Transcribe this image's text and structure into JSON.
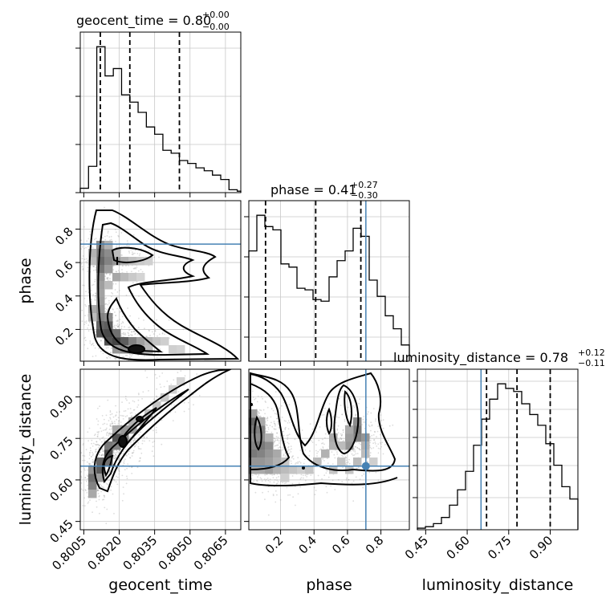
{
  "chart_data": {
    "type": "corner",
    "parameters": [
      "geocent_time",
      "phase",
      "luminosity_distance"
    ],
    "truths": {
      "geocent_time": null,
      "phase": 0.71,
      "luminosity_distance": 0.65
    },
    "colors": {
      "truth": "#4682b4",
      "hist": "#000000",
      "grid": "#c8c8c8",
      "samples": "#9a9a9a"
    },
    "grid": true,
    "panels": {
      "geocent_time": {
        "title": {
          "name": "geocent_time",
          "value": "0.80",
          "plus": "+0.00",
          "minus": "−0.00"
        },
        "xlim": [
          0.80035,
          0.80715
        ],
        "xticks": [
          0.8005,
          0.802,
          0.8035,
          0.805,
          0.8065
        ],
        "xticklabels": [
          "0.8005",
          "0.8020",
          "0.8035",
          "0.8050",
          "0.8065"
        ],
        "xlabel": "geocent_time",
        "hist_edges": [
          0.80035,
          0.8007,
          0.80105,
          0.8014,
          0.80175,
          0.8021,
          0.80245,
          0.8028,
          0.80315,
          0.8035,
          0.80385,
          0.8042,
          0.80455,
          0.8049,
          0.80525,
          0.8056,
          0.80595,
          0.8063,
          0.80665,
          0.807,
          0.80715
        ],
        "hist_counts": [
          3,
          18,
          100,
          80,
          85,
          67,
          62,
          55,
          45,
          40,
          29,
          27,
          22,
          20,
          17,
          15,
          12,
          9,
          2,
          1
        ],
        "quantiles": [
          0.8012,
          0.80245,
          0.80455
        ]
      },
      "phase": {
        "title": {
          "name": "phase",
          "value": "0.41",
          "plus": "+0.27",
          "minus": "−0.30"
        },
        "xlim": [
          0.01,
          0.97
        ],
        "xticks": [
          0.2,
          0.4,
          0.6,
          0.8
        ],
        "xticklabels": [
          "0.2",
          "0.4",
          "0.6",
          "0.8"
        ],
        "yticks": [
          0.2,
          0.4,
          0.6,
          0.8
        ],
        "yticklabels": [
          "0.2",
          "0.4",
          "0.6",
          "0.8"
        ],
        "xlabel": "phase",
        "ylabel": "phase",
        "hist_edges": [
          0.01,
          0.058,
          0.106,
          0.154,
          0.202,
          0.25,
          0.298,
          0.346,
          0.394,
          0.442,
          0.49,
          0.538,
          0.586,
          0.634,
          0.682,
          0.73,
          0.778,
          0.826,
          0.874,
          0.922,
          0.97
        ],
        "hist_counts": [
          68,
          90,
          83,
          81,
          60,
          58,
          45,
          44,
          38,
          37,
          52,
          62,
          68,
          82,
          77,
          50,
          40,
          28,
          20,
          10
        ],
        "quantiles": [
          0.11,
          0.41,
          0.68
        ]
      },
      "luminosity_distance": {
        "title": {
          "name": "luminosity_distance",
          "value": "0.78",
          "plus": "+0.12",
          "minus": "−0.11"
        },
        "xlim": [
          0.42,
          1.0
        ],
        "xticks": [
          0.45,
          0.6,
          0.75,
          0.9
        ],
        "xticklabels": [
          "0.45",
          "0.60",
          "0.75",
          "0.90"
        ],
        "yticks": [
          0.45,
          0.6,
          0.75,
          0.9
        ],
        "yticklabels": [
          "0.45",
          "0.60",
          "0.75",
          "0.90"
        ],
        "xlabel": "luminosity_distance",
        "ylabel": "luminosity_distance",
        "hist_edges": [
          0.42,
          0.449,
          0.478,
          0.507,
          0.536,
          0.565,
          0.594,
          0.623,
          0.652,
          0.681,
          0.71,
          0.739,
          0.768,
          0.797,
          0.826,
          0.855,
          0.884,
          0.913,
          0.942,
          0.971,
          1.0
        ],
        "hist_counts": [
          1,
          2,
          4,
          8,
          16,
          26,
          38,
          55,
          72,
          85,
          95,
          92,
          90,
          82,
          75,
          68,
          56,
          42,
          28,
          20
        ],
        "quantiles": [
          0.67,
          0.78,
          0.9
        ]
      }
    },
    "contour_density": {
      "phase_vs_geocent_time": {
        "x_range": [
          0.80035,
          0.80715
        ],
        "y_range": [
          0.01,
          0.97
        ],
        "nx": 20,
        "ny": 20,
        "cells": [
          [
            2,
            14,
            0.5
          ],
          [
            2,
            13,
            0.62
          ],
          [
            2,
            12,
            0.7
          ],
          [
            2,
            11,
            0.62
          ],
          [
            3,
            13,
            0.5
          ],
          [
            3,
            12,
            0.55
          ],
          [
            4,
            12,
            0.45
          ],
          [
            3,
            11,
            0.42
          ],
          [
            5,
            12,
            0.3
          ],
          [
            6,
            12,
            0.22
          ],
          [
            7,
            12,
            0.18
          ],
          [
            8,
            12,
            0.14
          ],
          [
            4,
            10,
            0.36
          ],
          [
            5,
            10,
            0.26
          ],
          [
            6,
            10,
            0.18
          ],
          [
            7,
            10,
            0.12
          ],
          [
            2,
            10,
            0.45
          ],
          [
            2,
            9,
            0.4
          ],
          [
            2,
            8,
            0.38
          ],
          [
            2,
            7,
            0.4
          ],
          [
            1,
            6,
            0.35
          ],
          [
            2,
            6,
            0.45
          ],
          [
            2,
            5,
            0.55
          ],
          [
            2,
            4,
            0.7
          ],
          [
            3,
            4,
            0.75
          ],
          [
            2,
            3,
            0.8
          ],
          [
            3,
            3,
            0.85
          ],
          [
            3,
            2,
            0.8
          ],
          [
            4,
            2,
            0.88
          ],
          [
            5,
            2,
            0.75
          ],
          [
            4,
            3,
            0.65
          ],
          [
            6,
            2,
            0.55
          ],
          [
            7,
            2,
            0.4
          ],
          [
            8,
            2,
            0.28
          ],
          [
            9,
            2,
            0.2
          ],
          [
            4,
            1,
            0.45
          ],
          [
            5,
            1,
            0.5
          ],
          [
            6,
            1,
            0.4
          ],
          [
            7,
            1,
            0.3
          ],
          [
            8,
            1,
            0.25
          ],
          [
            10,
            2,
            0.15
          ],
          [
            11,
            1,
            0.15
          ],
          [
            12,
            1,
            0.12
          ],
          [
            3,
            5,
            0.5
          ],
          [
            1,
            5,
            0.25
          ],
          [
            1,
            12,
            0.25
          ],
          [
            3,
            14,
            0.3
          ],
          [
            1,
            13,
            0.3
          ],
          [
            4,
            13,
            0.25
          ],
          [
            3,
            9,
            0.25
          ]
        ]
      },
      "luminosity_distance_vs_geocent_time": {
        "x_range": [
          0.80035,
          0.80715
        ],
        "y_range": [
          0.42,
          1.0
        ],
        "nx": 20,
        "ny": 20,
        "cells": [
          [
            1,
            5,
            0.55
          ],
          [
            1,
            6,
            0.65
          ],
          [
            1,
            7,
            0.45
          ],
          [
            2,
            7,
            0.75
          ],
          [
            2,
            8,
            0.7
          ],
          [
            3,
            8,
            0.65
          ],
          [
            3,
            9,
            0.85
          ],
          [
            3,
            10,
            0.6
          ],
          [
            4,
            10,
            0.55
          ],
          [
            4,
            11,
            0.8
          ],
          [
            5,
            11,
            0.55
          ],
          [
            5,
            12,
            0.45
          ],
          [
            6,
            12,
            0.4
          ],
          [
            6,
            13,
            0.3
          ],
          [
            7,
            13,
            0.25
          ],
          [
            8,
            14,
            0.22
          ],
          [
            9,
            15,
            0.2
          ],
          [
            10,
            16,
            0.18
          ],
          [
            11,
            17,
            0.15
          ],
          [
            12,
            18,
            0.12
          ],
          [
            2,
            6,
            0.4
          ],
          [
            1,
            4,
            0.35
          ],
          [
            4,
            12,
            0.35
          ]
        ]
      },
      "luminosity_distance_vs_phase": {
        "x_range": [
          0.01,
          0.97
        ],
        "y_range": [
          0.42,
          1.0
        ],
        "nx": 20,
        "ny": 20,
        "cells": [
          [
            0,
            13,
            0.7
          ],
          [
            0,
            12,
            0.6
          ],
          [
            1,
            12,
            0.55
          ],
          [
            1,
            11,
            0.5
          ],
          [
            0,
            11,
            0.5
          ],
          [
            0,
            10,
            0.55
          ],
          [
            1,
            10,
            0.6
          ],
          [
            2,
            10,
            0.5
          ],
          [
            0,
            9,
            0.6
          ],
          [
            1,
            9,
            0.55
          ],
          [
            2,
            9,
            0.45
          ],
          [
            3,
            9,
            0.35
          ],
          [
            0,
            8,
            0.45
          ],
          [
            1,
            8,
            0.45
          ],
          [
            2,
            8,
            0.4
          ],
          [
            3,
            8,
            0.3
          ],
          [
            4,
            8,
            0.2
          ],
          [
            0,
            7,
            0.35
          ],
          [
            1,
            7,
            0.35
          ],
          [
            2,
            7,
            0.4
          ],
          [
            3,
            7,
            0.3
          ],
          [
            4,
            7,
            0.25
          ],
          [
            5,
            7,
            0.2
          ],
          [
            0,
            14,
            0.4
          ],
          [
            1,
            13,
            0.35
          ],
          [
            2,
            11,
            0.3
          ],
          [
            4,
            6,
            0.15
          ],
          [
            6,
            7,
            0.15
          ],
          [
            7,
            7,
            0.2
          ],
          [
            8,
            8,
            0.25
          ],
          [
            9,
            9,
            0.3
          ],
          [
            10,
            10,
            0.3
          ],
          [
            10,
            11,
            0.35
          ],
          [
            12,
            10,
            0.45
          ],
          [
            13,
            11,
            0.55
          ],
          [
            13,
            12,
            0.6
          ],
          [
            14,
            11,
            0.45
          ],
          [
            13,
            13,
            0.5
          ],
          [
            12,
            11,
            0.4
          ],
          [
            12,
            12,
            0.35
          ],
          [
            11,
            10,
            0.25
          ],
          [
            14,
            10,
            0.3
          ],
          [
            14,
            9,
            0.25
          ],
          [
            13,
            8,
            0.25
          ],
          [
            11,
            8,
            0.2
          ],
          [
            10,
            7,
            0.2
          ],
          [
            12,
            7,
            0.2
          ],
          [
            15,
            8,
            0.15
          ]
        ]
      }
    }
  }
}
